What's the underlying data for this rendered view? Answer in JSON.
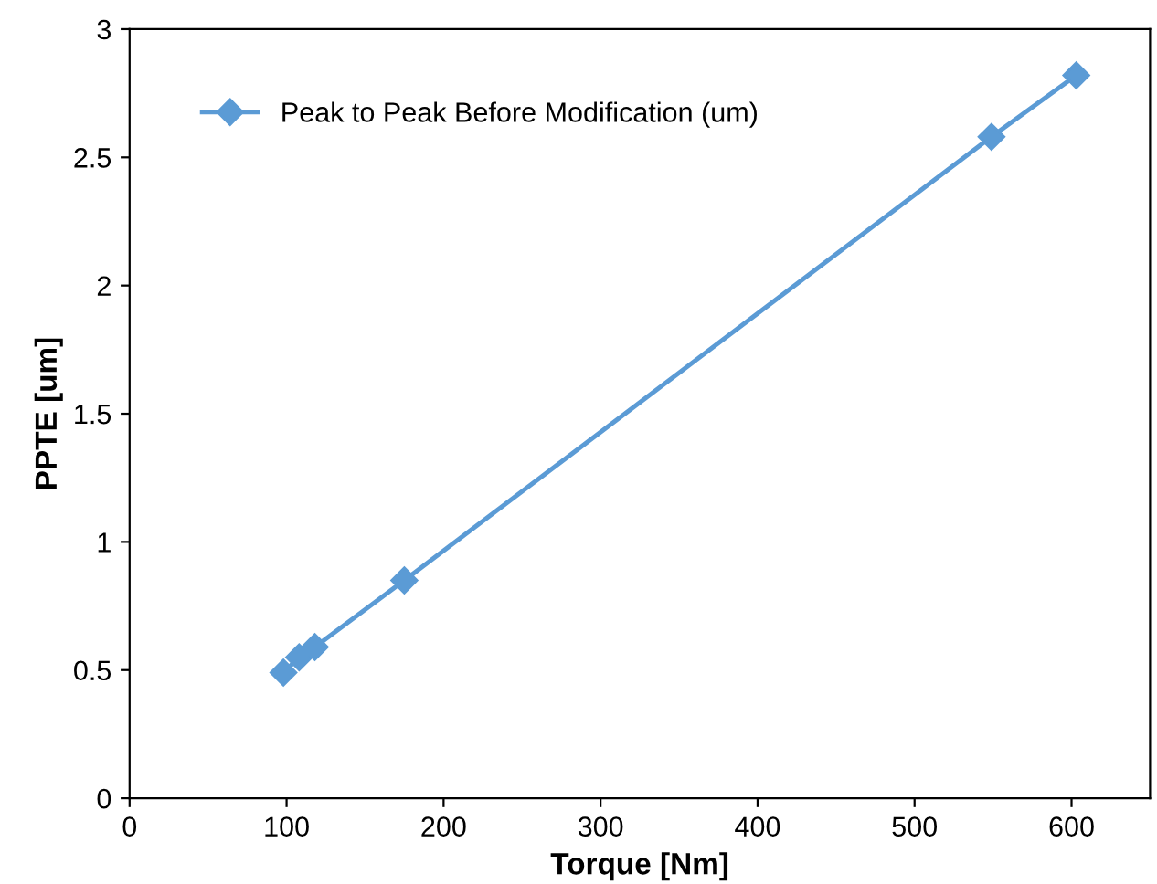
{
  "chart_data": {
    "type": "line",
    "xlabel": "Torque [Nm]",
    "ylabel": "PPTE [um]",
    "x": [
      98,
      108,
      118,
      175,
      549,
      603
    ],
    "series": [
      {
        "name": "Peak to Peak Before Modification (um)",
        "color": "#5b9bd5",
        "values": [
          0.49,
          0.55,
          0.59,
          0.85,
          2.58,
          2.82
        ]
      }
    ],
    "xlim": [
      0,
      650
    ],
    "xticks": [
      0,
      100,
      200,
      300,
      400,
      500,
      600
    ],
    "ylim": [
      0,
      3
    ],
    "yticks": [
      0,
      0.5,
      1,
      1.5,
      2,
      2.5,
      3
    ],
    "marker": "diamond",
    "line_style": "solid",
    "grid": false,
    "legend": "top left"
  }
}
